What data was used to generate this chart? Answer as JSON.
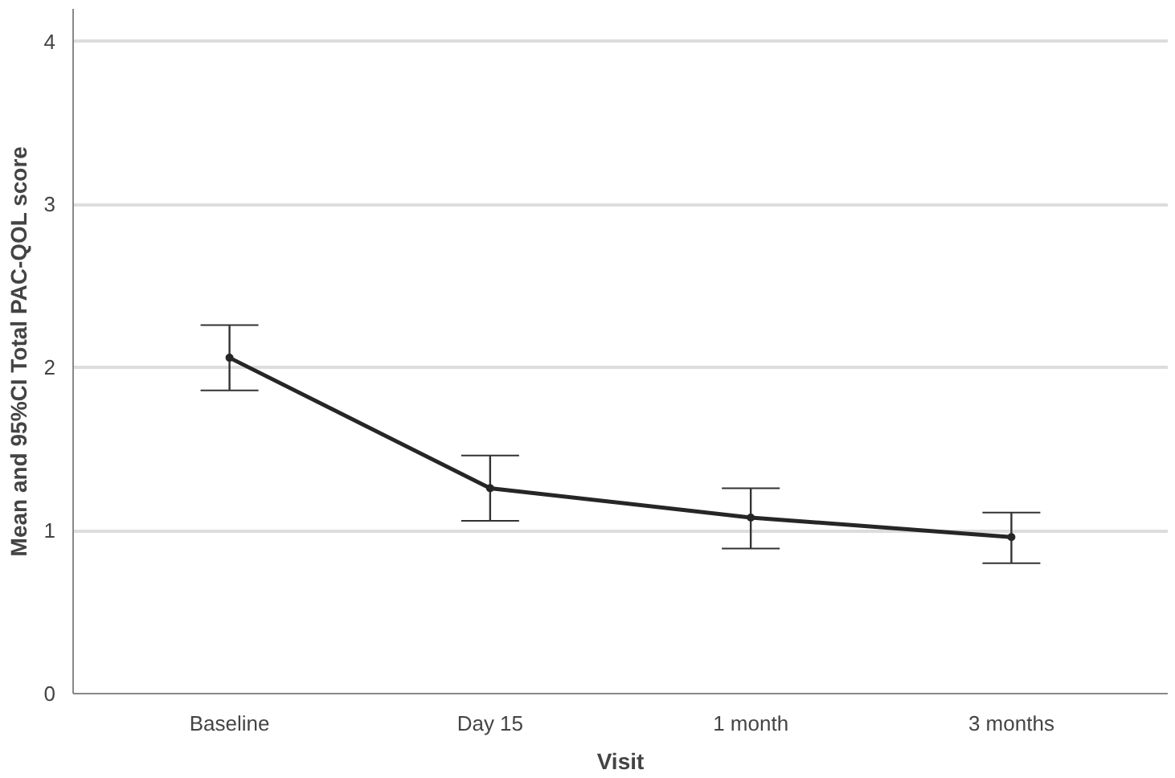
{
  "chart_data": {
    "type": "line",
    "xlabel": "Visit",
    "ylabel": "Mean and 95%CI Total PAC-QOL score",
    "categories": [
      "Baseline",
      "Day 15",
      "1 month",
      "3 months"
    ],
    "series": [
      {
        "color": "#262626",
        "values": [
          2.06,
          1.26,
          1.08,
          0.96
        ],
        "errors": [
          [
            1.86,
            2.26
          ],
          [
            1.06,
            1.46
          ],
          [
            0.89,
            1.26
          ],
          [
            0.8,
            1.11
          ]
        ]
      }
    ],
    "ylim": [
      0,
      4.2
    ],
    "yticks": [
      0,
      1,
      2,
      3,
      4
    ],
    "grid": "y",
    "marker": "circle",
    "line_style": "solid"
  }
}
